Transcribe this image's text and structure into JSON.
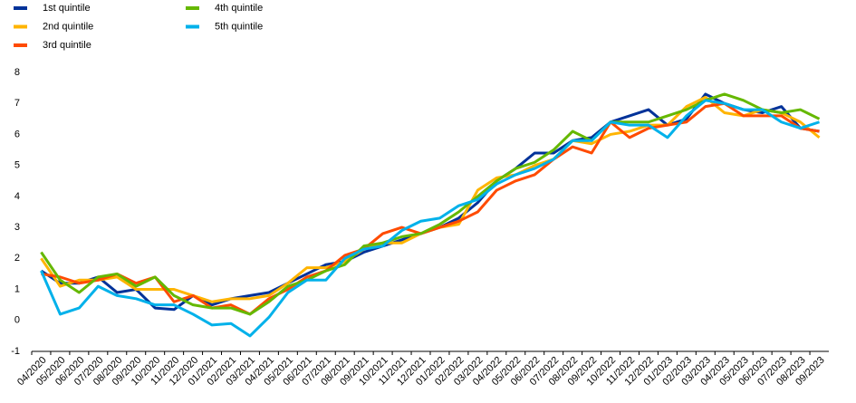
{
  "chart_data": {
    "type": "line",
    "categories": [
      "04/2020",
      "05/2020",
      "06/2020",
      "07/2020",
      "08/2020",
      "09/2020",
      "10/2020",
      "11/2020",
      "12/2020",
      "01/2021",
      "02/2021",
      "03/2021",
      "04/2021",
      "05/2021",
      "06/2021",
      "07/2021",
      "08/2021",
      "09/2021",
      "10/2021",
      "11/2021",
      "12/2021",
      "01/2022",
      "02/2022",
      "03/2022",
      "04/2022",
      "05/2022",
      "06/2022",
      "07/2022",
      "08/2022",
      "09/2022",
      "10/2022",
      "11/2022",
      "12/2022",
      "01/2023",
      "02/2023",
      "03/2023",
      "04/2023",
      "05/2023",
      "06/2023",
      "07/2023",
      "08/2023",
      "09/2023"
    ],
    "series": [
      {
        "name": "1st quintile",
        "color": "#003299",
        "values": [
          1.6,
          1.2,
          1.2,
          1.4,
          0.9,
          1.0,
          0.4,
          0.35,
          0.8,
          0.5,
          0.7,
          0.8,
          0.9,
          1.2,
          1.5,
          1.8,
          1.9,
          2.2,
          2.4,
          2.6,
          2.8,
          3.0,
          3.3,
          3.8,
          4.5,
          4.9,
          5.4,
          5.4,
          5.8,
          5.9,
          6.4,
          6.6,
          6.8,
          6.3,
          6.5,
          7.3,
          7.0,
          6.8,
          6.7,
          6.9,
          6.2,
          6.1
        ]
      },
      {
        "name": "2nd quintile",
        "color": "#ffb400",
        "values": [
          2.0,
          1.1,
          1.3,
          1.3,
          1.4,
          1.0,
          1.0,
          1.0,
          0.8,
          0.6,
          0.7,
          0.7,
          0.8,
          1.2,
          1.7,
          1.7,
          1.9,
          2.3,
          2.5,
          2.5,
          2.8,
          3.0,
          3.1,
          4.2,
          4.6,
          4.7,
          5.0,
          5.2,
          5.8,
          5.7,
          6.0,
          6.1,
          6.3,
          6.3,
          6.9,
          7.2,
          6.7,
          6.6,
          6.8,
          6.7,
          6.4,
          5.9
        ]
      },
      {
        "name": "3rd quintile",
        "color": "#ff4b00",
        "values": [
          1.5,
          1.4,
          1.2,
          1.3,
          1.5,
          1.2,
          1.4,
          0.6,
          0.8,
          0.4,
          0.5,
          0.2,
          0.7,
          1.0,
          1.4,
          1.6,
          2.1,
          2.3,
          2.8,
          3.0,
          2.8,
          3.0,
          3.2,
          3.5,
          4.2,
          4.5,
          4.7,
          5.2,
          5.6,
          5.4,
          6.4,
          5.9,
          6.2,
          6.3,
          6.4,
          6.9,
          7.0,
          6.6,
          6.6,
          6.6,
          6.2,
          6.1
        ]
      },
      {
        "name": "4th quintile",
        "color": "#65b800",
        "values": [
          2.2,
          1.3,
          0.9,
          1.4,
          1.5,
          1.1,
          1.4,
          0.8,
          0.5,
          0.4,
          0.4,
          0.2,
          0.6,
          1.1,
          1.3,
          1.6,
          1.8,
          2.4,
          2.5,
          2.7,
          2.8,
          3.1,
          3.5,
          4.0,
          4.5,
          4.9,
          5.1,
          5.5,
          6.1,
          5.8,
          6.4,
          6.4,
          6.4,
          6.6,
          6.8,
          7.1,
          7.3,
          7.1,
          6.8,
          6.7,
          6.8,
          6.5
        ]
      },
      {
        "name": "5th quintile",
        "color": "#00b1ea",
        "values": [
          1.6,
          0.2,
          0.4,
          1.1,
          0.8,
          0.7,
          0.5,
          0.5,
          0.2,
          -0.15,
          -0.1,
          -0.5,
          0.1,
          0.9,
          1.3,
          1.3,
          2.0,
          2.3,
          2.4,
          2.9,
          3.2,
          3.3,
          3.7,
          3.9,
          4.4,
          4.7,
          4.9,
          5.2,
          5.8,
          5.8,
          6.4,
          6.3,
          6.3,
          5.9,
          6.6,
          7.1,
          7.0,
          6.8,
          6.8,
          6.4,
          6.2,
          6.4
        ]
      }
    ],
    "ylim": [
      -1,
      8
    ],
    "yticks": [
      -1,
      0,
      1,
      2,
      3,
      4,
      5,
      6,
      7,
      8
    ],
    "grid": false,
    "legend": "top-left"
  }
}
